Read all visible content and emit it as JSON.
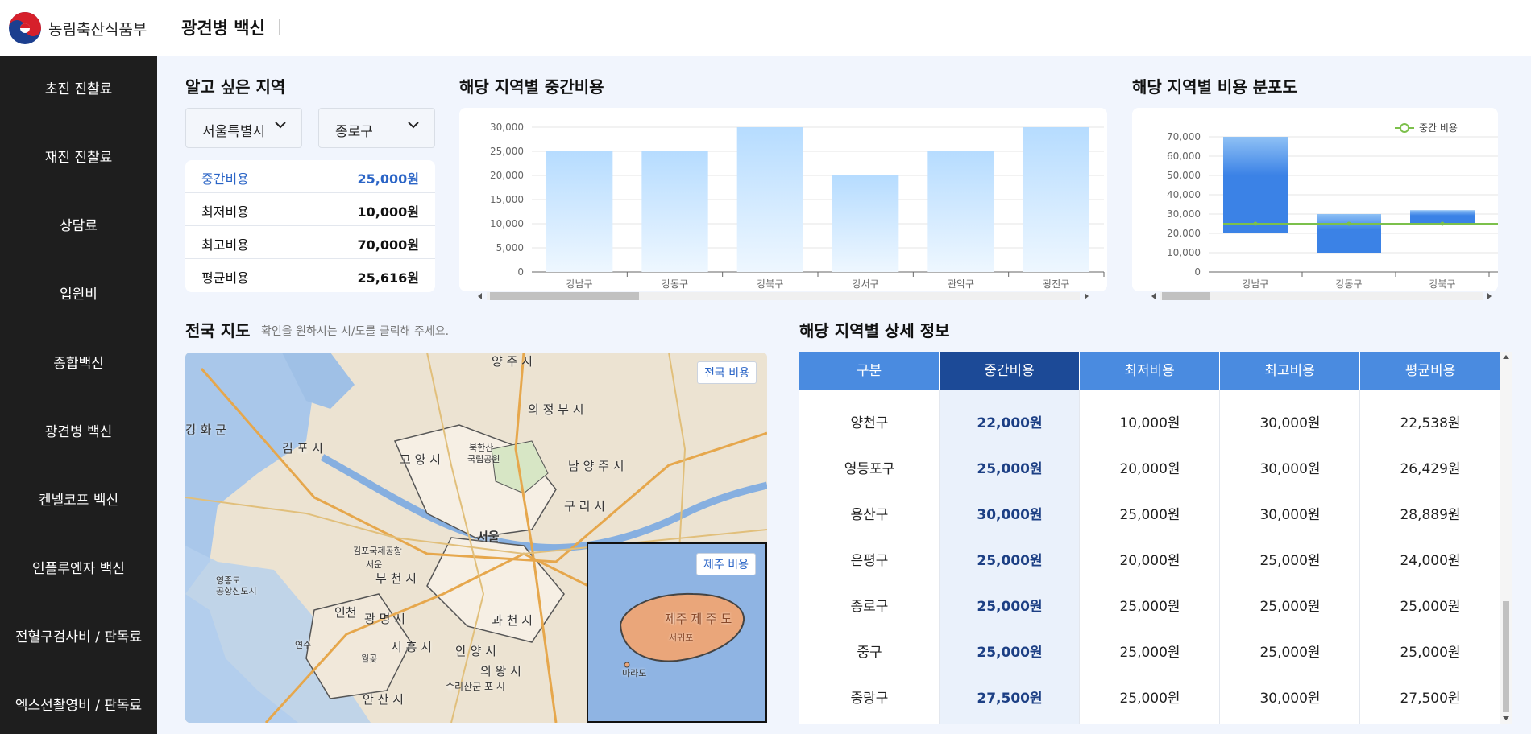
{
  "header": {
    "org_name": "농림축산식품부",
    "page_title": "광견병 백신"
  },
  "colors": {
    "sidebar_bg": "#1e1e1e",
    "accent": "#4a8be0",
    "accent_dark": "#1c4a97",
    "highlight": "#2a64c6",
    "bar_fill": "#c6e6ff",
    "bar_blue": "#3b82e6",
    "median_line": "#7cc04b"
  },
  "sidebar": {
    "items": [
      {
        "label": "초진 진찰료"
      },
      {
        "label": "재진 진찰료"
      },
      {
        "label": "상담료"
      },
      {
        "label": "입원비"
      },
      {
        "label": "종합백신"
      },
      {
        "label": "광견병 백신"
      },
      {
        "label": "켄넬코프 백신"
      },
      {
        "label": "인플루엔자 백신"
      },
      {
        "label": "전혈구검사비 / 판독료"
      },
      {
        "label": "엑스선촬영비 / 판독료"
      }
    ]
  },
  "region_select": {
    "title": "알고 싶은 지역",
    "city": "서울특별시",
    "district": "종로구",
    "stats": [
      {
        "label": "중간비용",
        "value": "25,000원",
        "highlight": true
      },
      {
        "label": "최저비용",
        "value": "10,000원"
      },
      {
        "label": "최고비용",
        "value": "70,000원"
      },
      {
        "label": "평균비용",
        "value": "25,616원"
      }
    ]
  },
  "median_chart": {
    "title": "해당 지역별 중간비용"
  },
  "dist_chart": {
    "title": "해당 지역별 비용 분포도"
  },
  "chart_data": [
    {
      "type": "bar",
      "categories": [
        "강남구",
        "강동구",
        "강북구",
        "강서구",
        "관악구",
        "광진구"
      ],
      "values": [
        25000,
        25000,
        30000,
        20000,
        25000,
        30000
      ],
      "title": "",
      "xlabel": "",
      "ylabel": "",
      "ylim": [
        0,
        30000
      ],
      "yticks": [
        "0",
        "5,000",
        "10,000",
        "15,000",
        "20,000",
        "25,000",
        "30,000"
      ],
      "grid": true
    },
    {
      "type": "bar",
      "categories": [
        "강남구",
        "강동구",
        "강북구"
      ],
      "ranges": [
        {
          "low": 20000,
          "high": 70000
        },
        {
          "low": 10000,
          "high": 30000
        },
        {
          "low": 25000,
          "high": 32000
        }
      ],
      "series": [
        {
          "name": "중간 비용",
          "type": "line",
          "values": [
            25000,
            25000,
            25000
          ]
        }
      ],
      "ylim": [
        0,
        70000
      ],
      "yticks": [
        "0",
        "10,000",
        "20,000",
        "30,000",
        "40,000",
        "50,000",
        "60,000",
        "70,000"
      ],
      "legend": "top-right",
      "grid": true
    }
  ],
  "map": {
    "title": "전국 지도",
    "hint": "확인을 원하시는 시/도를 클릭해 주세요.",
    "national_button": "전국 비용",
    "jeju_button": "제주 비용",
    "labels": [
      {
        "text": "양 주 시"
      },
      {
        "text": "의 정 부 시"
      },
      {
        "text": "김 포 시"
      },
      {
        "text": "고 양 시"
      },
      {
        "text": "남 양 주 시"
      },
      {
        "text": "구 리 시"
      },
      {
        "text": "서울"
      },
      {
        "text": "부 천 시"
      },
      {
        "text": "인천"
      },
      {
        "text": "광 명 시"
      },
      {
        "text": "과 천 시"
      },
      {
        "text": "시 흥 시"
      },
      {
        "text": "안 양 시"
      },
      {
        "text": "의 왕 시"
      },
      {
        "text": "안 산 시"
      },
      {
        "text": "강 화 군"
      },
      {
        "text": "북한산"
      },
      {
        "text": "국립공원"
      },
      {
        "text": "김포국제공항"
      },
      {
        "text": "영종도"
      },
      {
        "text": "공항신도시"
      },
      {
        "text": "서운"
      },
      {
        "text": "연수"
      },
      {
        "text": "월곶"
      },
      {
        "text": "수리산군 포 시"
      }
    ],
    "jeju_labels": [
      {
        "text": "제주 제 주 도"
      },
      {
        "text": "서귀포"
      },
      {
        "text": "마라도"
      }
    ]
  },
  "detail": {
    "title": "해당 지역별 상세 정보",
    "columns": [
      "구분",
      "중간비용",
      "최저비용",
      "최고비용",
      "평균비용"
    ],
    "rows": [
      {
        "region": "양천구",
        "median": "22,000원",
        "min": "10,000원",
        "max": "30,000원",
        "avg": "22,538원"
      },
      {
        "region": "영등포구",
        "median": "25,000원",
        "min": "20,000원",
        "max": "30,000원",
        "avg": "26,429원"
      },
      {
        "region": "용산구",
        "median": "30,000원",
        "min": "25,000원",
        "max": "30,000원",
        "avg": "28,889원"
      },
      {
        "region": "은평구",
        "median": "25,000원",
        "min": "20,000원",
        "max": "25,000원",
        "avg": "24,000원"
      },
      {
        "region": "종로구",
        "median": "25,000원",
        "min": "25,000원",
        "max": "25,000원",
        "avg": "25,000원"
      },
      {
        "region": "중구",
        "median": "25,000원",
        "min": "25,000원",
        "max": "25,000원",
        "avg": "25,000원"
      },
      {
        "region": "중랑구",
        "median": "27,500원",
        "min": "25,000원",
        "max": "30,000원",
        "avg": "27,500원"
      }
    ]
  }
}
